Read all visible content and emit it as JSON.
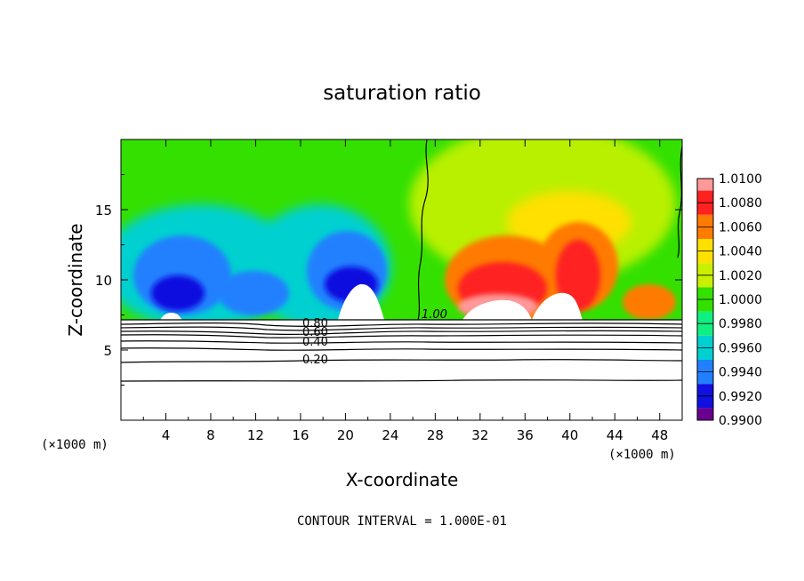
{
  "chart_data": {
    "type": "heatmap",
    "title": "saturation ratio",
    "xlabel": "X-coordinate",
    "ylabel": "Z-coordinate",
    "x_unit": "(×1000 m)",
    "y_unit": "(×1000 m)",
    "xlim": [
      0,
      50
    ],
    "ylim": [
      0,
      20
    ],
    "x_ticks": [
      "4",
      "8",
      "12",
      "16",
      "20",
      "24",
      "28",
      "32",
      "36",
      "40",
      "44",
      "48"
    ],
    "y_ticks": [
      "5",
      "10",
      "15"
    ],
    "footer": "CONTOUR INTERVAL = 1.000E-01",
    "colorbar": {
      "levels": [
        "1.0100",
        "1.0080",
        "1.0060",
        "1.0040",
        "1.0020",
        "1.0000",
        "0.9980",
        "0.9960",
        "0.9940",
        "0.9920",
        "0.9900"
      ],
      "range": [
        0.99,
        1.01
      ],
      "colors": [
        "#ff9999",
        "#ff2020",
        "#ff7a00",
        "#ffe000",
        "#c8f000",
        "#33e000",
        "#10f080",
        "#00d0d0",
        "#2080ff",
        "#1010e0",
        "#6a0090"
      ]
    },
    "contour_labels": [
      "1.00",
      "0.80",
      "0.60",
      "0.40",
      "0.20"
    ],
    "terrain_top_z": 7.1
  }
}
